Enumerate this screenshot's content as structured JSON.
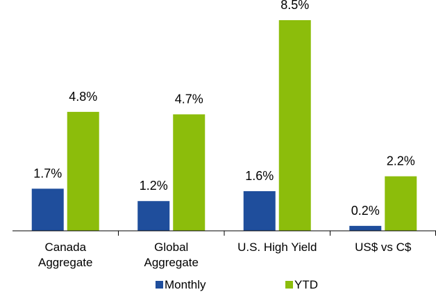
{
  "chart_data": {
    "type": "bar",
    "categories": [
      [
        "Canada",
        "Aggregate"
      ],
      [
        "Global",
        "Aggregate"
      ],
      [
        "U.S. High Yield"
      ],
      [
        "US$ vs C$"
      ]
    ],
    "series": [
      {
        "name": "Monthly",
        "values": [
          1.7,
          1.2,
          1.6,
          0.2
        ],
        "labels": [
          "1.7%",
          "1.2%",
          "1.6%",
          "0.2%"
        ],
        "color": "#1f4e9c"
      },
      {
        "name": "YTD",
        "values": [
          4.8,
          4.7,
          8.5,
          2.2
        ],
        "labels": [
          "4.8%",
          "4.7%",
          "8.5%",
          "2.2%"
        ],
        "color": "#8cbd0b"
      }
    ],
    "ylim": [
      0,
      8.5
    ],
    "grid": false,
    "legend_position": "bottom"
  }
}
